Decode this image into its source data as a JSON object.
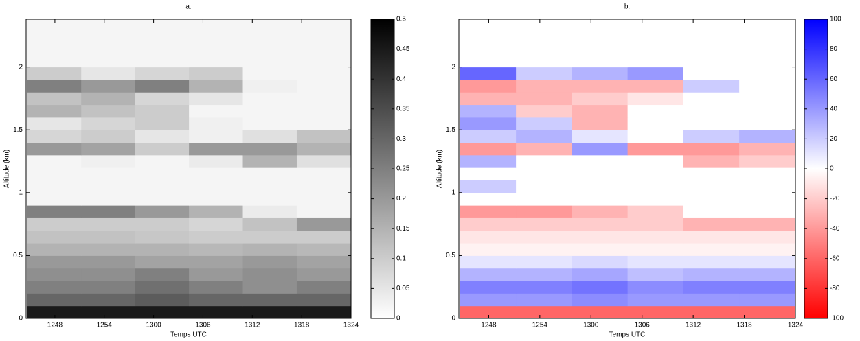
{
  "chart_data": [
    {
      "type": "heatmap",
      "title": "a.",
      "x_label": "Temps UTC",
      "y_label": "Altitude (km)",
      "x": [
        47.9,
        54.5,
        61.0,
        67.6,
        74.1,
        80.7
      ],
      "y": [
        0.05,
        0.15,
        0.25,
        0.35,
        0.45,
        0.55,
        0.65,
        0.75,
        0.85,
        0.95,
        1.05,
        1.15,
        1.25,
        1.35,
        1.45,
        1.55,
        1.65,
        1.75,
        1.85,
        1.95,
        2.05,
        2.15,
        2.25,
        2.35
      ],
      "z": [
        [
          0.45,
          0.45,
          0.45,
          0.45,
          0.45,
          0.45
        ],
        [
          0.3,
          0.3,
          0.32,
          0.3,
          0.3,
          0.3
        ],
        [
          0.25,
          0.25,
          0.28,
          0.25,
          0.22,
          0.25
        ],
        [
          0.22,
          0.22,
          0.25,
          0.2,
          0.22,
          0.2
        ],
        [
          0.2,
          0.2,
          0.18,
          0.18,
          0.2,
          0.18
        ],
        [
          0.15,
          0.15,
          0.15,
          0.14,
          0.15,
          0.14
        ],
        [
          0.12,
          0.12,
          0.11,
          0.1,
          0.1,
          0.1
        ],
        [
          0.1,
          0.1,
          0.1,
          0.08,
          0.12,
          0.2
        ],
        [
          0.25,
          0.25,
          0.2,
          0.15,
          0.04,
          0.02
        ],
        [
          0.02,
          0.02,
          0.02,
          0.02,
          0.02,
          0.02
        ],
        [
          0.02,
          0.02,
          0.02,
          0.02,
          0.02,
          0.02
        ],
        [
          0.02,
          0.02,
          0.02,
          0.02,
          0.02,
          0.02
        ],
        [
          0.02,
          0.03,
          0.02,
          0.04,
          0.15,
          0.06
        ],
        [
          0.2,
          0.18,
          0.1,
          0.2,
          0.2,
          0.15
        ],
        [
          0.08,
          0.1,
          0.05,
          0.03,
          0.06,
          0.12
        ],
        [
          0.05,
          0.08,
          0.1,
          0.03,
          0.02,
          0.02
        ],
        [
          0.15,
          0.12,
          0.1,
          0.02,
          0.02,
          0.02
        ],
        [
          0.12,
          0.15,
          0.08,
          0.05,
          0.02,
          0.02
        ],
        [
          0.25,
          0.2,
          0.25,
          0.15,
          0.03,
          0.02
        ],
        [
          0.1,
          0.05,
          0.08,
          0.1,
          0.02,
          0.02
        ],
        [
          0.02,
          0.02,
          0.02,
          0.02,
          0.02,
          0.02
        ],
        [
          0.02,
          0.02,
          0.02,
          0.02,
          0.02,
          0.02
        ],
        [
          0.02,
          0.02,
          0.02,
          0.02,
          0.02,
          0.02
        ],
        [
          0.02,
          0.02,
          0.02,
          0.02,
          0.02,
          0.02
        ]
      ],
      "xlim": [
        44.5,
        84
      ],
      "ylim": [
        0,
        2.38
      ],
      "xticks": [
        {
          "value": 48,
          "label": "1248"
        },
        {
          "value": 54,
          "label": "1254"
        },
        {
          "value": 60,
          "label": "1300"
        },
        {
          "value": 66,
          "label": "1306"
        },
        {
          "value": 72,
          "label": "1312"
        },
        {
          "value": 78,
          "label": "1318"
        },
        {
          "value": 84,
          "label": "1324"
        }
      ],
      "yticks": [
        0,
        0.5,
        1,
        1.5,
        2
      ],
      "colormap": [
        "#ffffff",
        "#000000"
      ],
      "colorbar": {
        "lim": [
          0,
          0.5
        ],
        "ticks": [
          0,
          0.05,
          0.1,
          0.15,
          0.2,
          0.25,
          0.3,
          0.35,
          0.4,
          0.45,
          0.5
        ]
      }
    },
    {
      "type": "heatmap",
      "title": "b.",
      "x_label": "Temps UTC",
      "y_label": "Altitude (km)",
      "x": [
        47.9,
        54.5,
        61.0,
        67.6,
        74.1,
        80.7
      ],
      "y": [
        0.05,
        0.15,
        0.25,
        0.35,
        0.45,
        0.55,
        0.65,
        0.75,
        0.85,
        0.95,
        1.05,
        1.15,
        1.25,
        1.35,
        1.45,
        1.55,
        1.65,
        1.75,
        1.85,
        1.95,
        2.05,
        2.15,
        2.25,
        2.35
      ],
      "z": [
        [
          -60,
          -60,
          -60,
          -60,
          -60,
          -60
        ],
        [
          40,
          40,
          45,
          40,
          40,
          40
        ],
        [
          50,
          50,
          55,
          45,
          50,
          50
        ],
        [
          30,
          30,
          35,
          25,
          30,
          30
        ],
        [
          10,
          10,
          15,
          10,
          10,
          10
        ],
        [
          -5,
          -5,
          -5,
          -5,
          -5,
          -5
        ],
        [
          -10,
          -10,
          -10,
          -10,
          -10,
          -10
        ],
        [
          -20,
          -20,
          -20,
          -20,
          -30,
          -30
        ],
        [
          -40,
          -40,
          -30,
          -20,
          0,
          0
        ],
        [
          0,
          0,
          0,
          0,
          0,
          0
        ],
        [
          20,
          0,
          0,
          0,
          0,
          0
        ],
        [
          0,
          0,
          0,
          0,
          0,
          0
        ],
        [
          30,
          0,
          0,
          0,
          -30,
          -20
        ],
        [
          -40,
          -30,
          40,
          -40,
          -40,
          -30
        ],
        [
          20,
          30,
          10,
          0,
          20,
          30
        ],
        [
          40,
          20,
          -30,
          0,
          0,
          0
        ],
        [
          30,
          -20,
          -30,
          0,
          0,
          0
        ],
        [
          -30,
          -30,
          -20,
          -10,
          0,
          0
        ],
        [
          -40,
          -30,
          -30,
          -30,
          20,
          0
        ],
        [
          60,
          20,
          30,
          40,
          0,
          0
        ],
        [
          0,
          0,
          0,
          0,
          0,
          0
        ],
        [
          0,
          0,
          0,
          0,
          0,
          0
        ],
        [
          0,
          0,
          0,
          0,
          0,
          0
        ],
        [
          0,
          0,
          0,
          0,
          0,
          0
        ]
      ],
      "xlim": [
        44.5,
        84
      ],
      "ylim": [
        0,
        2.38
      ],
      "xticks": [
        {
          "value": 48,
          "label": "1248"
        },
        {
          "value": 54,
          "label": "1254"
        },
        {
          "value": 60,
          "label": "1300"
        },
        {
          "value": 66,
          "label": "1306"
        },
        {
          "value": 72,
          "label": "1312"
        },
        {
          "value": 78,
          "label": "1318"
        },
        {
          "value": 84,
          "label": "1324"
        }
      ],
      "yticks": [
        0,
        0.5,
        1,
        1.5,
        2
      ],
      "colormap": [
        "#ff0000",
        "#ffffff",
        "#0000ff"
      ],
      "colorbar": {
        "lim": [
          -100,
          100
        ],
        "ticks": [
          -100,
          -80,
          -60,
          -40,
          -20,
          0,
          20,
          40,
          60,
          80,
          100
        ]
      }
    }
  ]
}
